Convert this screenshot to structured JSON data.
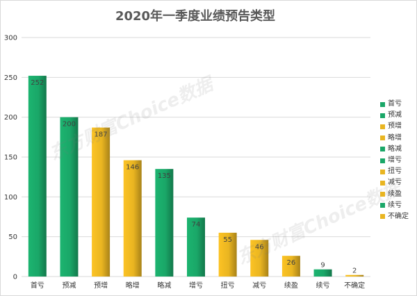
{
  "watermark": "东方财富Choice数据",
  "colors": {
    "green": "#1aa768",
    "yellow": "#e9b521",
    "axis_text": "#333333",
    "grid": "#d9d9d9"
  },
  "chart_data": {
    "type": "bar",
    "title": "2020年一季度业绩预告类型",
    "categories": [
      "首亏",
      "预减",
      "预增",
      "略增",
      "略减",
      "增亏",
      "扭亏",
      "减亏",
      "续盈",
      "续亏",
      "不确定"
    ],
    "values": [
      252,
      200,
      187,
      146,
      135,
      74,
      55,
      46,
      26,
      9,
      2
    ],
    "bar_colors": [
      "green",
      "green",
      "yellow",
      "yellow",
      "green",
      "green",
      "yellow",
      "yellow",
      "yellow",
      "green",
      "yellow"
    ],
    "ylim": [
      0,
      300
    ],
    "yticks": [
      0,
      50,
      100,
      150,
      200,
      250,
      300
    ],
    "grid": true,
    "legend": "right",
    "data_labels": true
  }
}
